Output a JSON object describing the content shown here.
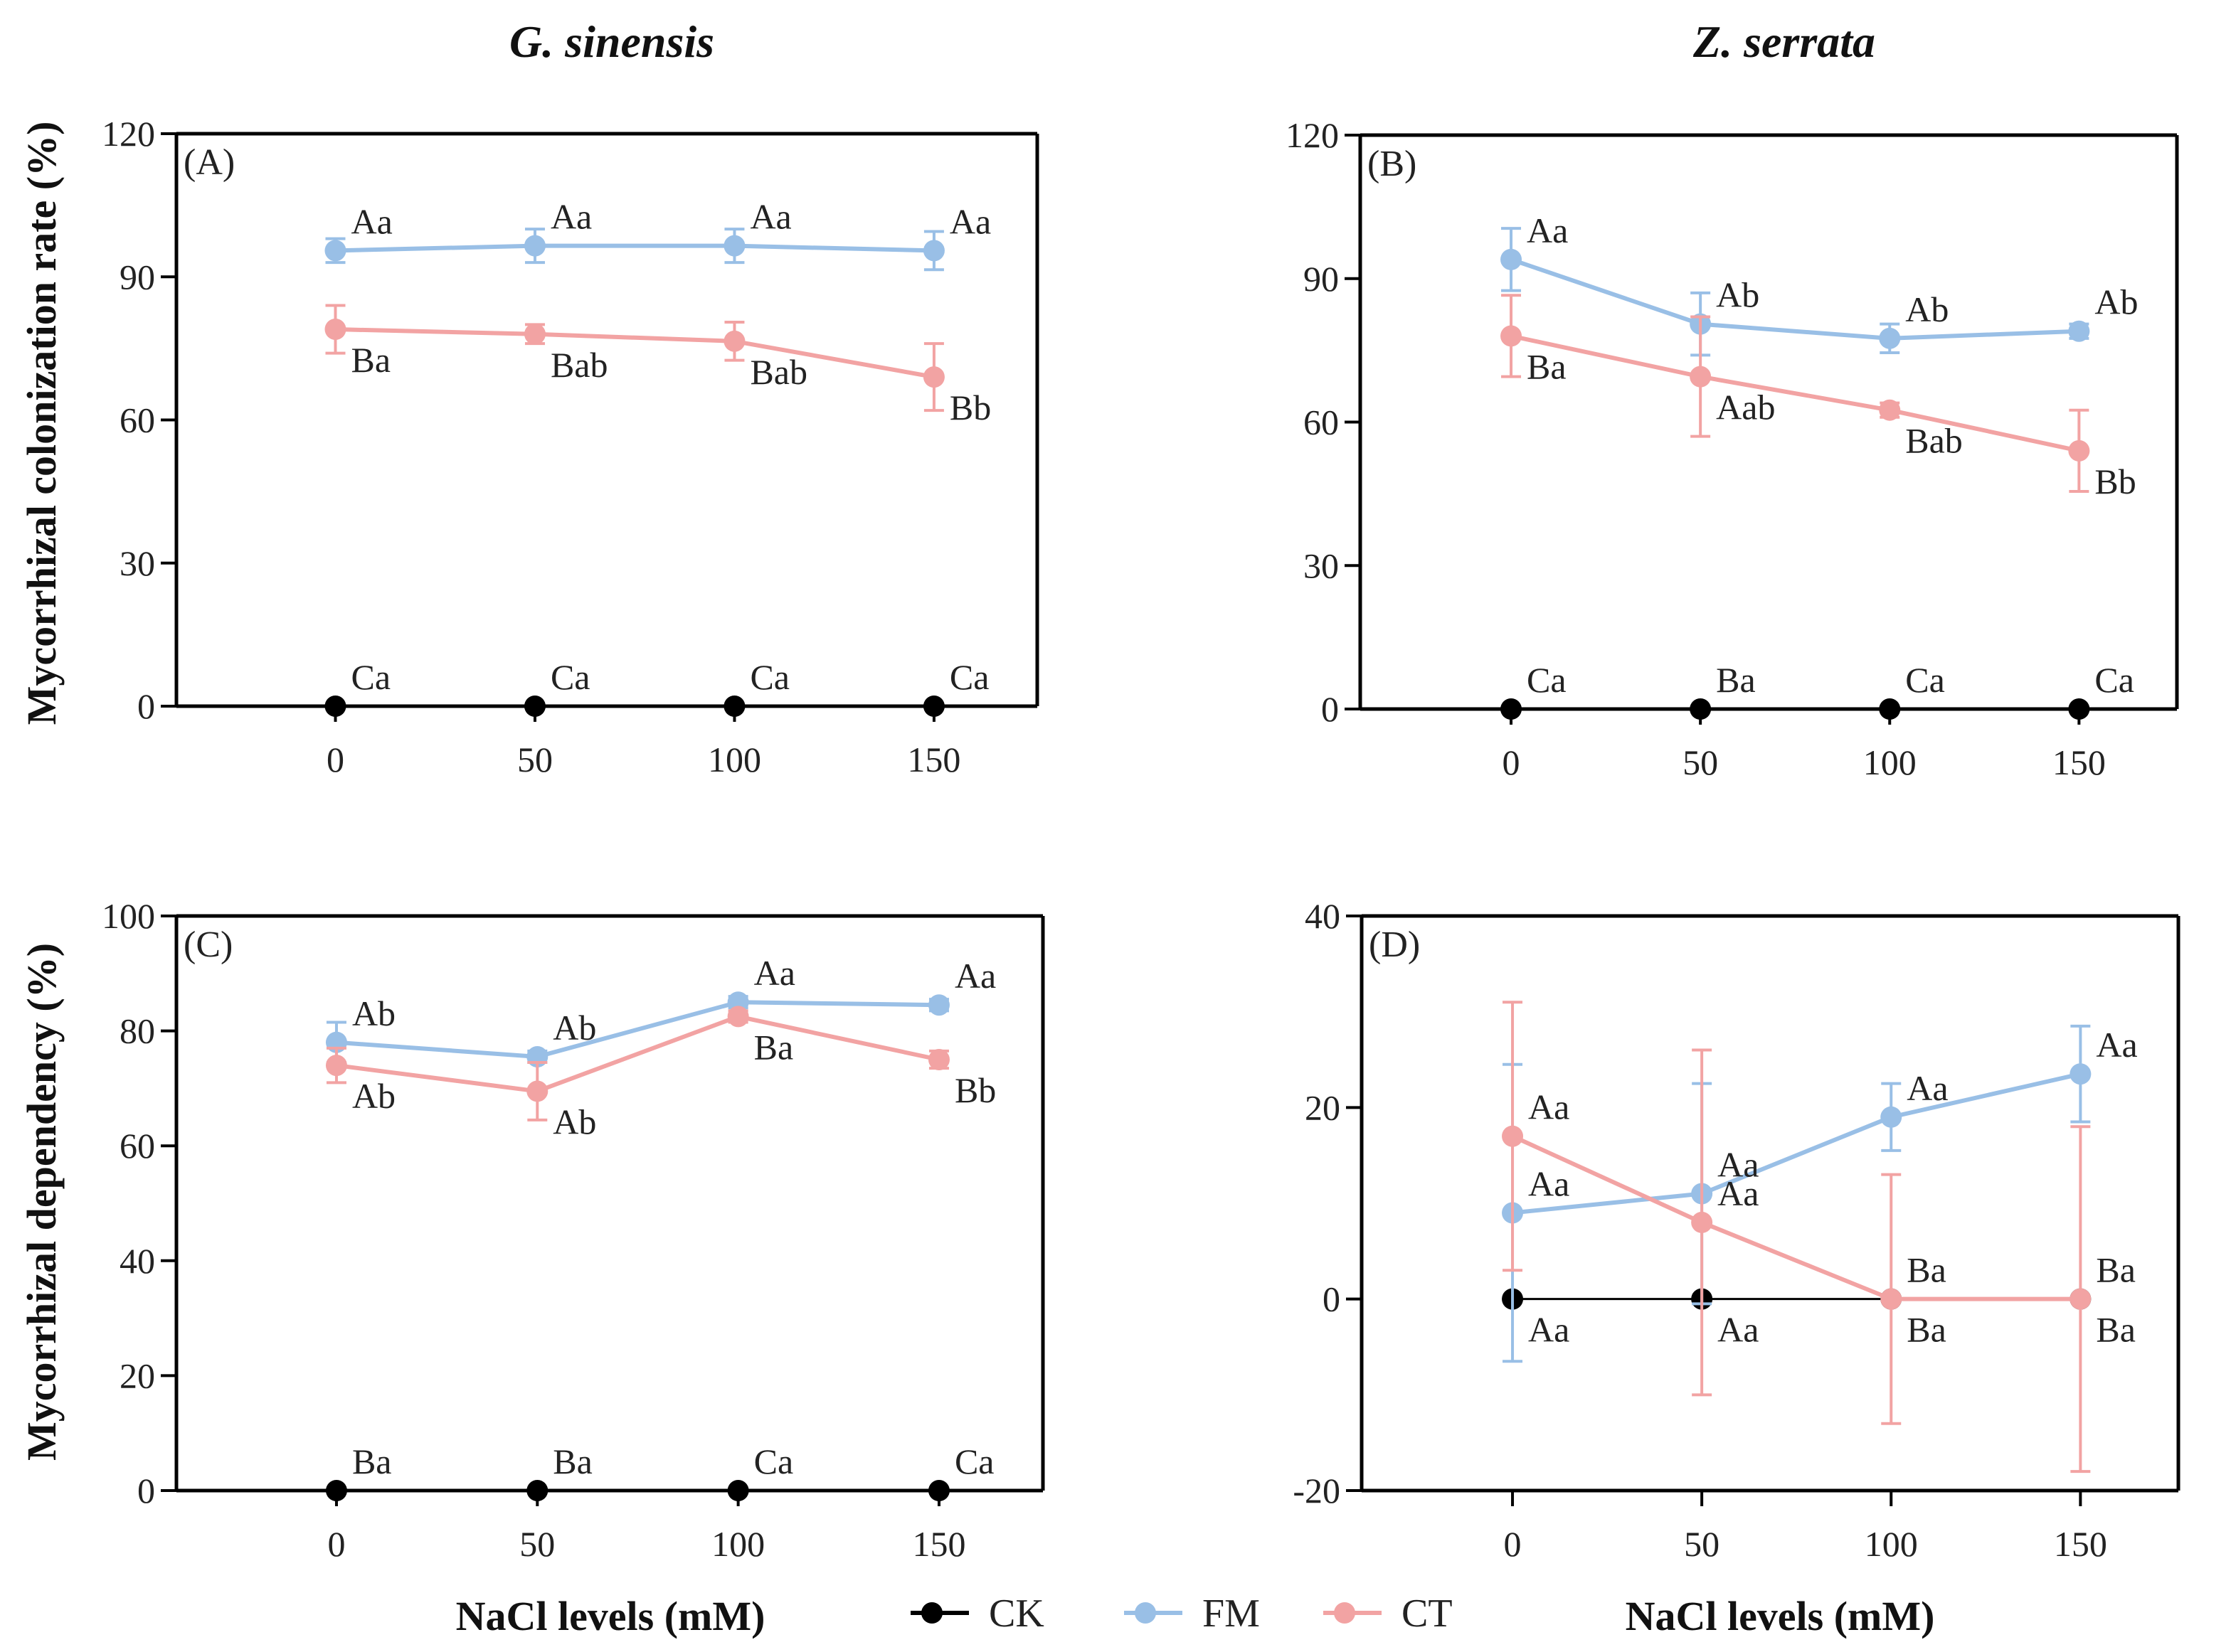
{
  "figure": {
    "col_titles": [
      "G. sinensis",
      "Z. serrata"
    ],
    "xlabel_left": "NaCl levels (mM)",
    "xlabel_right": "NaCl levels (mM)",
    "legend": [
      {
        "name": "CK",
        "color": "#000000"
      },
      {
        "name": "FM",
        "color": "#99bfe6"
      },
      {
        "name": "CT",
        "color": "#f2a3a3"
      }
    ]
  },
  "chart_data": [
    {
      "panel": "(A)",
      "type": "line",
      "title": "G. sinensis",
      "ylabel": "Mycorrhizal colonization rate (%)",
      "xlabel": "NaCl levels (mM)",
      "x": [
        0,
        50,
        100,
        150
      ],
      "ylim": [
        0,
        120
      ],
      "yticks": [
        0,
        30,
        60,
        90,
        120
      ],
      "series": [
        {
          "name": "CK",
          "color": "#000000",
          "values": [
            0,
            0,
            0,
            0
          ],
          "errors": [
            0,
            0,
            0,
            0
          ],
          "labels": [
            "Ca",
            "Ca",
            "Ca",
            "Ca"
          ],
          "label_pos": "above"
        },
        {
          "name": "FM",
          "color": "#99bfe6",
          "values": [
            95.5,
            96.5,
            96.5,
            95.5
          ],
          "errors": [
            2.5,
            3.5,
            3.5,
            4
          ],
          "labels": [
            "Aa",
            "Aa",
            "Aa",
            "Aa"
          ],
          "label_pos": "above"
        },
        {
          "name": "CT",
          "color": "#f2a3a3",
          "values": [
            79,
            78,
            76.5,
            69
          ],
          "errors": [
            5,
            2,
            4,
            7
          ],
          "labels": [
            "Ba",
            "Bab",
            "Bab",
            "Bb"
          ],
          "label_pos": "below"
        }
      ]
    },
    {
      "panel": "(B)",
      "type": "line",
      "title": "Z. serrata",
      "ylabel": "",
      "xlabel": "NaCl levels (mM)",
      "x": [
        0,
        50,
        100,
        150
      ],
      "ylim": [
        0,
        120
      ],
      "yticks": [
        0,
        30,
        60,
        90,
        120
      ],
      "series": [
        {
          "name": "CK",
          "color": "#000000",
          "values": [
            0,
            0,
            0,
            0
          ],
          "errors": [
            0,
            0,
            0,
            0
          ],
          "labels": [
            "Ca",
            "Ba",
            "Ca",
            "Ca"
          ],
          "label_pos": "above"
        },
        {
          "name": "FM",
          "color": "#99bfe6",
          "values": [
            94,
            80.5,
            77.5,
            79
          ],
          "errors": [
            6.5,
            6.5,
            3,
            1.5
          ],
          "labels": [
            "Aa",
            "Ab",
            "Ab",
            "Ab"
          ],
          "label_pos": "above"
        },
        {
          "name": "CT",
          "color": "#f2a3a3",
          "values": [
            78,
            69.5,
            62.5,
            54
          ],
          "errors": [
            8.5,
            12.5,
            1.5,
            8.5
          ],
          "labels": [
            "Ba",
            "Aab",
            "Bab",
            "Bb"
          ],
          "label_pos": "below"
        }
      ]
    },
    {
      "panel": "(C)",
      "type": "line",
      "title": "",
      "ylabel": "Mycorrhizal dependency (%)",
      "xlabel": "NaCl levels (mM)",
      "x": [
        0,
        50,
        100,
        150
      ],
      "ylim": [
        0,
        100
      ],
      "yticks": [
        0,
        20,
        40,
        60,
        80,
        100
      ],
      "series": [
        {
          "name": "CK",
          "color": "#000000",
          "values": [
            0,
            0,
            0,
            0
          ],
          "errors": [
            0,
            0,
            0,
            0
          ],
          "labels": [
            "Ba",
            "Ba",
            "Ca",
            "Ca"
          ],
          "label_pos": "above"
        },
        {
          "name": "FM",
          "color": "#99bfe6",
          "values": [
            78,
            75.5,
            85,
            84.5
          ],
          "errors": [
            3.5,
            1,
            1,
            1
          ],
          "labels": [
            "Ab",
            "Ab",
            "Aa",
            "Aa"
          ],
          "label_pos": "above"
        },
        {
          "name": "CT",
          "color": "#f2a3a3",
          "values": [
            74,
            69.5,
            82.5,
            75
          ],
          "errors": [
            3,
            5,
            1,
            1.5
          ],
          "labels": [
            "Ab",
            "Ab",
            "Ba",
            "Bb"
          ],
          "label_pos": "below"
        }
      ]
    },
    {
      "panel": "(D)",
      "type": "line",
      "title": "",
      "ylabel": "",
      "xlabel": "NaCl levels (mM)",
      "x": [
        0,
        50,
        100,
        150
      ],
      "ylim": [
        -20,
        40
      ],
      "yticks": [
        -20,
        0,
        20,
        40
      ],
      "series": [
        {
          "name": "CK",
          "color": "#000000",
          "values": [
            0,
            0,
            0,
            0
          ],
          "errors": [
            0,
            0,
            0,
            0
          ],
          "labels": [
            "Aa",
            "Aa",
            "Ba",
            "Ba"
          ],
          "label_pos": "below"
        },
        {
          "name": "FM",
          "color": "#99bfe6",
          "values": [
            9,
            11,
            19,
            23.5
          ],
          "errors": [
            15.5,
            11.5,
            3.5,
            5
          ],
          "labels": [
            "Aa",
            "Aa",
            "Aa",
            "Aa"
          ],
          "label_pos": "above"
        },
        {
          "name": "CT",
          "color": "#f2a3a3",
          "values": [
            17,
            8,
            0,
            0
          ],
          "errors": [
            14,
            18,
            13,
            18
          ],
          "labels": [
            "Aa",
            "Aa",
            "Ba",
            "Ba"
          ],
          "label_pos": "above"
        }
      ]
    }
  ]
}
